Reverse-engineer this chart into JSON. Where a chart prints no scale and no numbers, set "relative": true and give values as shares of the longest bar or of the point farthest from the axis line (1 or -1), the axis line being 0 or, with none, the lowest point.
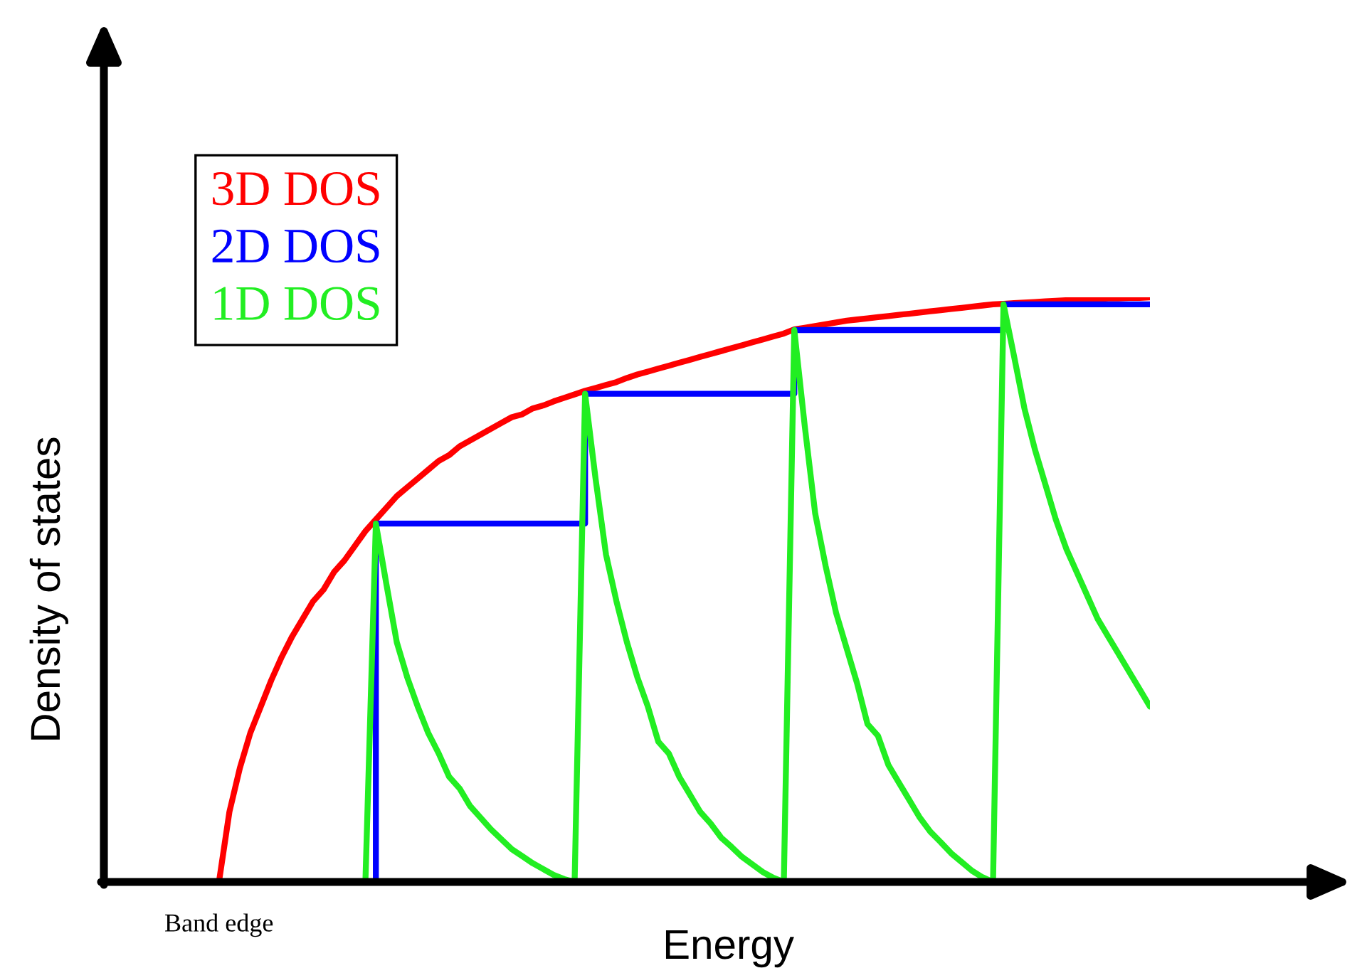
{
  "chart_data": {
    "type": "line",
    "xlabel": "Energy",
    "ylabel": "Density of states",
    "relative": true,
    "legend": "top left",
    "tick_labels": false,
    "annotations": [
      "Band edge"
    ],
    "categories": [
      null,
      null,
      null,
      null,
      null,
      null,
      null,
      null,
      null,
      null,
      null,
      null,
      null,
      null,
      null,
      null,
      null,
      null,
      null,
      null,
      null,
      null,
      null,
      null,
      null,
      null,
      null,
      null,
      null,
      null,
      null,
      null,
      null,
      null,
      null,
      null,
      null,
      null,
      null,
      null,
      null,
      null,
      null,
      null,
      null,
      null,
      null,
      null,
      null,
      null,
      null,
      null,
      null,
      null,
      null,
      null,
      null,
      null,
      null,
      null,
      null,
      null,
      null,
      null,
      null,
      null,
      null,
      null,
      null,
      null,
      null,
      null,
      null,
      null,
      null,
      null,
      null,
      null,
      null,
      null,
      null,
      null,
      null,
      null,
      null,
      null,
      null,
      null,
      null,
      null,
      null,
      null,
      null,
      null,
      null,
      null,
      null,
      null,
      null,
      null,
      null
    ],
    "series": [
      {
        "name": "3D DOS",
        "color": "#ff0000",
        "values": [
          null,
          null,
          null,
          null,
          null,
          null,
          null,
          null,
          null,
          null,
          null,
          0,
          0.12,
          0.195,
          0.255,
          0.3,
          0.345,
          0.385,
          0.42,
          0.45,
          0.48,
          0.5,
          0.53,
          0.55,
          0.575,
          0.6,
          0.62,
          0.64,
          0.66,
          0.675,
          0.69,
          0.705,
          0.72,
          0.73,
          0.745,
          0.755,
          0.765,
          0.775,
          0.785,
          0.795,
          0.8,
          0.81,
          0.815,
          0.822,
          0.828,
          0.834,
          0.84,
          0.845,
          0.85,
          0.855,
          0.862,
          0.868,
          0.873,
          0.878,
          0.883,
          0.888,
          0.893,
          0.898,
          0.903,
          0.908,
          0.913,
          0.918,
          0.923,
          0.928,
          0.933,
          0.938,
          0.945,
          0.948,
          0.951,
          0.954,
          0.957,
          0.96,
          0.962,
          0.964,
          0.966,
          0.968,
          0.97,
          0.972,
          0.974,
          0.976,
          0.978,
          0.98,
          0.982,
          0.984,
          0.986,
          0.988,
          0.989,
          0.99,
          0.991,
          0.992,
          0.993,
          0.994,
          0.995,
          0.996,
          0.996,
          0.997,
          0.998,
          0.998,
          0.999,
          0.999,
          1
        ]
      },
      {
        "name": "2D DOS",
        "type": "step",
        "color": "#0000ff",
        "values": [
          null,
          null,
          null,
          null,
          null,
          null,
          null,
          null,
          null,
          null,
          null,
          null,
          null,
          null,
          null,
          null,
          null,
          null,
          null,
          null,
          null,
          null,
          null,
          null,
          null,
          0,
          0.613,
          0.613,
          0.613,
          0.613,
          0.613,
          0.613,
          0.613,
          0.613,
          0.613,
          0.613,
          0.613,
          0.613,
          0.613,
          0.613,
          0.613,
          0.613,
          0.613,
          0.613,
          0.613,
          0.613,
          0.835,
          0.835,
          0.835,
          0.835,
          0.835,
          0.835,
          0.835,
          0.835,
          0.835,
          0.835,
          0.835,
          0.835,
          0.835,
          0.835,
          0.835,
          0.835,
          0.835,
          0.835,
          0.835,
          0.835,
          0.944,
          0.944,
          0.944,
          0.944,
          0.944,
          0.944,
          0.944,
          0.944,
          0.944,
          0.944,
          0.944,
          0.944,
          0.944,
          0.944,
          0.944,
          0.944,
          0.944,
          0.944,
          0.944,
          0.944,
          0.988,
          0.988,
          0.988,
          0.988,
          0.988,
          0.988,
          0.988,
          0.988,
          0.988,
          0.988,
          0.988,
          0.988,
          0.988,
          0.988,
          0.988
        ]
      },
      {
        "name": "1D DOS",
        "color": "#22ee22",
        "values": [
          null,
          null,
          null,
          null,
          null,
          null,
          null,
          null,
          null,
          null,
          null,
          null,
          null,
          null,
          null,
          null,
          null,
          null,
          null,
          null,
          null,
          null,
          null,
          null,
          null,
          0,
          0.613,
          0.51,
          0.41,
          0.35,
          0.3,
          0.255,
          0.22,
          0.18,
          0.16,
          0.13,
          0.11,
          0.09,
          0.073,
          0.056,
          0.044,
          0.032,
          0.022,
          0.012,
          0.005,
          0,
          0.835,
          0.69,
          0.56,
          0.48,
          0.41,
          0.35,
          0.3,
          0.24,
          0.22,
          0.18,
          0.15,
          0.12,
          0.1,
          0.076,
          0.06,
          0.043,
          0.03,
          0.017,
          0.007,
          0,
          0.944,
          0.78,
          0.63,
          0.54,
          0.46,
          0.4,
          0.34,
          0.27,
          0.25,
          0.2,
          0.17,
          0.14,
          0.11,
          0.086,
          0.068,
          0.049,
          0.034,
          0.019,
          0.008,
          0,
          0.988,
          0.9,
          0.81,
          0.74,
          0.68,
          0.62,
          0.57,
          0.53,
          0.49,
          0.45,
          0.42,
          0.39,
          0.36,
          0.33,
          0.3
        ]
      }
    ]
  }
}
